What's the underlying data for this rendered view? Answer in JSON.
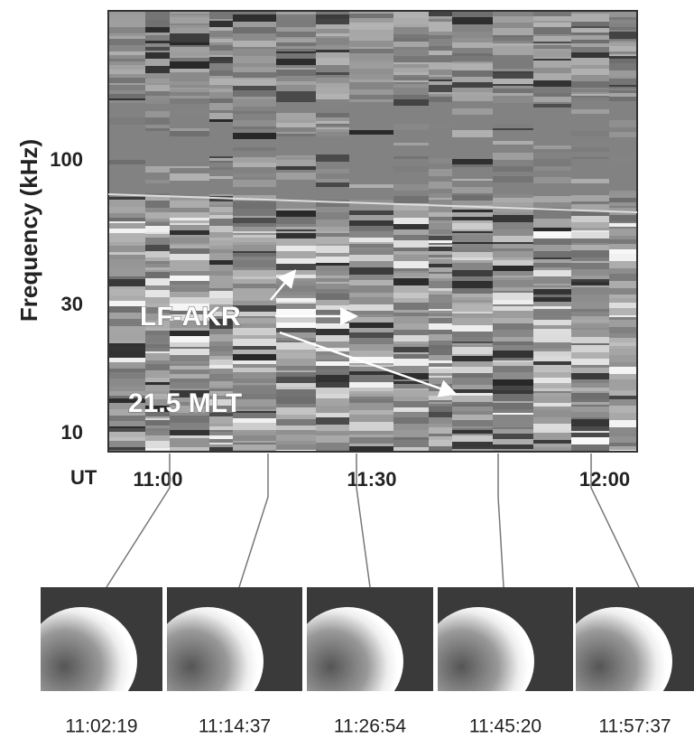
{
  "spectrogram": {
    "y_axis_label": "Frequency (kHz)",
    "y_ticks": [
      "100",
      "30",
      "10"
    ],
    "x_axis_label": "UT",
    "x_ticks": [
      "11:00",
      "11:30",
      "12:00"
    ],
    "annotations": [
      "LF-AKR",
      "21.5 MLT"
    ]
  },
  "images": [
    {
      "time": "11:02:19"
    },
    {
      "time": "11:14:37"
    },
    {
      "time": "11:26:54"
    },
    {
      "time": "11:45:20"
    },
    {
      "time": "11:57:37"
    }
  ]
}
